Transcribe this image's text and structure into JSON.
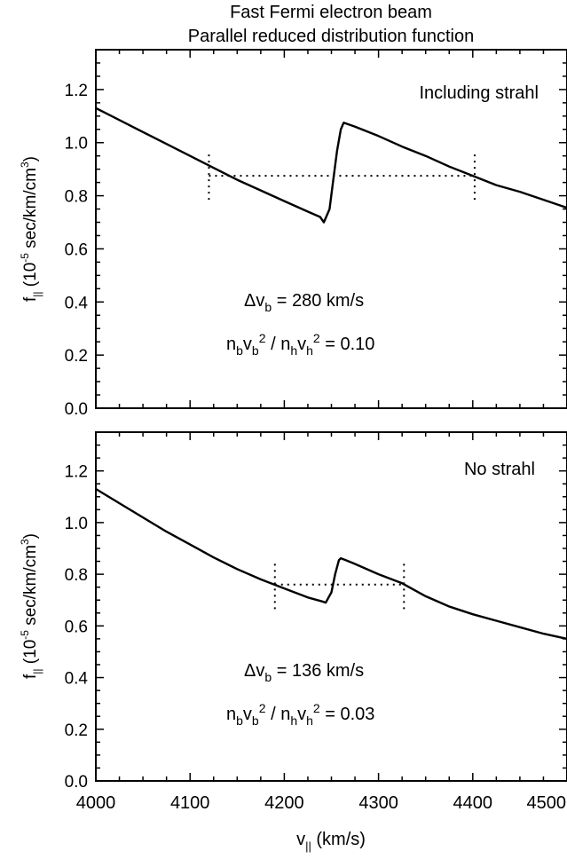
{
  "title": {
    "line1": "Fast Fermi electron beam",
    "line2": "Parallel reduced distribution function"
  },
  "x_axis": {
    "label_main": "v",
    "label_sub": "||",
    "label_unit": " (km/s)",
    "ticks": [
      "4000",
      "4100",
      "4200",
      "4300",
      "4400",
      "4500"
    ]
  },
  "y_axis": {
    "label_main": "f",
    "label_sub": "||",
    "label_unit_a": " (10",
    "label_sup": "-5",
    "label_unit_b": " sec/km/cm",
    "label_sup2": "3",
    "label_unit_c": ")"
  },
  "chart_data": [
    {
      "type": "line",
      "panel": "top",
      "xlim": [
        4000,
        4500
      ],
      "ylim": [
        0.0,
        1.35
      ],
      "yticks": [
        "0.0",
        "0.2",
        "0.4",
        "0.6",
        "0.8",
        "1.0",
        "1.2"
      ],
      "annotation": "Including strahl",
      "dv_label_main": "Δv",
      "dv_label_sub": "b",
      "dv_label_value": " = 280 km/s",
      "ratio_label": {
        "n1": "n",
        "s1": "b",
        "v1": "v",
        "s2": "b",
        "p1": "2",
        "mid": " / ",
        "n2": "n",
        "s3": "h",
        "v2": "v",
        "s4": "h",
        "p2": "2",
        "value": " = 0.10"
      },
      "x": [
        4000,
        4025,
        4050,
        4075,
        4100,
        4125,
        4150,
        4175,
        4200,
        4225,
        4238,
        4242,
        4248,
        4252,
        4256,
        4260,
        4263,
        4267,
        4275,
        4300,
        4325,
        4350,
        4375,
        4400,
        4425,
        4450,
        4475,
        4500
      ],
      "y": [
        1.13,
        1.085,
        1.04,
        0.995,
        0.95,
        0.905,
        0.86,
        0.82,
        0.78,
        0.74,
        0.72,
        0.7,
        0.75,
        0.86,
        0.97,
        1.05,
        1.075,
        1.07,
        1.06,
        1.025,
        0.985,
        0.95,
        0.91,
        0.875,
        0.84,
        0.815,
        0.785,
        0.755
      ],
      "plateau": {
        "x_start": 4120,
        "x_end": 4402,
        "y": 0.875,
        "marker_y_min": 0.785,
        "marker_y_max": 0.965
      }
    },
    {
      "type": "line",
      "panel": "bottom",
      "xlim": [
        4000,
        4500
      ],
      "ylim": [
        0.0,
        1.35
      ],
      "yticks": [
        "0.0",
        "0.2",
        "0.4",
        "0.6",
        "0.8",
        "1.0",
        "1.2"
      ],
      "annotation": "No strahl",
      "dv_label_main": "Δv",
      "dv_label_sub": "b",
      "dv_label_value": " = 136 km/s",
      "ratio_label": {
        "n1": "n",
        "s1": "b",
        "v1": "v",
        "s2": "b",
        "p1": "2",
        "mid": " / ",
        "n2": "n",
        "s3": "h",
        "v2": "v",
        "s4": "h",
        "p2": "2",
        "value": " = 0.03"
      },
      "x": [
        4000,
        4025,
        4050,
        4075,
        4100,
        4125,
        4150,
        4175,
        4200,
        4225,
        4240,
        4244,
        4250,
        4254,
        4258,
        4260,
        4265,
        4275,
        4300,
        4325,
        4350,
        4375,
        4400,
        4425,
        4450,
        4475,
        4500
      ],
      "y": [
        1.13,
        1.075,
        1.02,
        0.965,
        0.915,
        0.865,
        0.82,
        0.78,
        0.745,
        0.71,
        0.695,
        0.69,
        0.73,
        0.8,
        0.855,
        0.862,
        0.855,
        0.84,
        0.8,
        0.765,
        0.715,
        0.675,
        0.645,
        0.62,
        0.595,
        0.57,
        0.55
      ],
      "plateau": {
        "x_start": 4190,
        "x_end": 4327,
        "y": 0.76,
        "marker_y_min": 0.665,
        "marker_y_max": 0.855
      }
    }
  ]
}
